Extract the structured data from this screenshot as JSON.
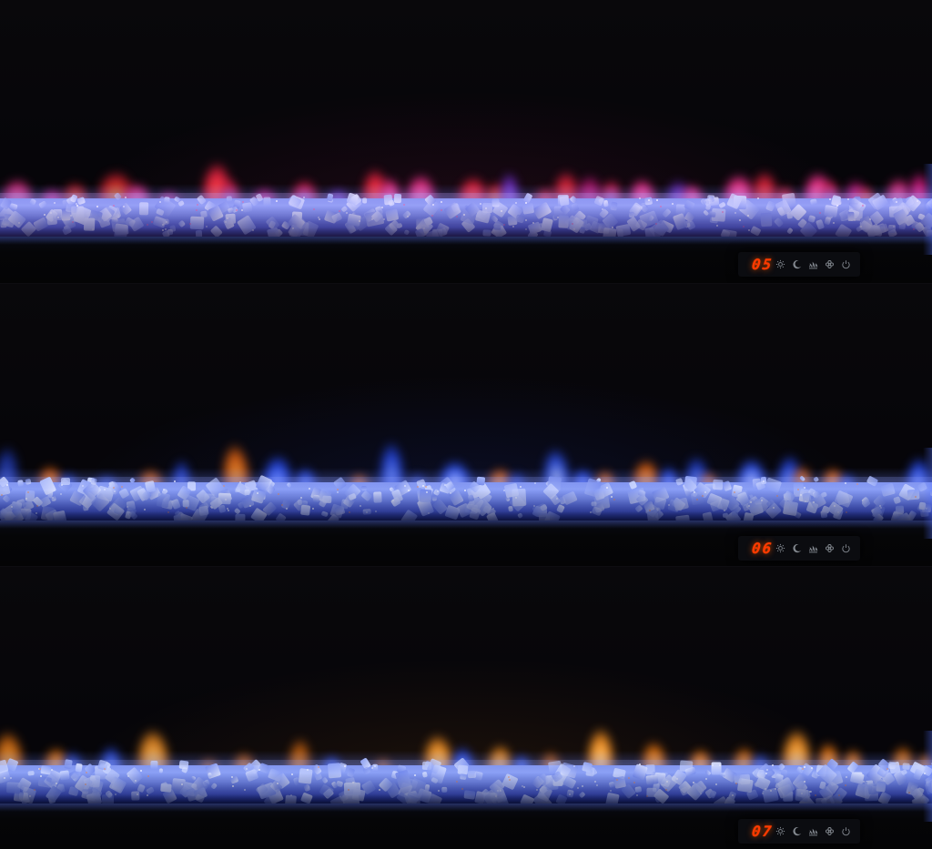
{
  "scene": {
    "description": "Linear electric fireplace with blue crystal ember bed shown in three stacked views, each with a different flame color setting and an LED touch control readout",
    "display": {
      "background": "#0b0c10",
      "digit_color": "#ff3a00",
      "icon_color": "#9aa0a8",
      "icons": [
        "brightness",
        "night-mode",
        "flame-bed",
        "fan",
        "power"
      ]
    },
    "crystals": {
      "base_top": "#8fa3f2",
      "base_deep": "#1b2570",
      "chunk_colors": [
        "#eef2ff",
        "#cdd8fd",
        "#aebefa",
        "#8ba0f4",
        "#7187e8",
        "#dfe7ff"
      ],
      "spark_color": "#ffffff"
    },
    "panels": [
      {
        "id": "top-view",
        "display_value": "05",
        "flame_theme": "magenta, pink and red flames with occasional orange and blue cores",
        "ambient_glow": "rgba(170,30,90,0.14)",
        "crystal_tint": "rgba(160,120,255,0.16)",
        "speck_color": "#ff5a8c",
        "palette": {
          "red": [
            "#d81f3c",
            "#ff5a50"
          ],
          "pink": [
            "#f0308c",
            "#ff8ac0"
          ],
          "magenta": [
            "#c01878",
            "#ff4fae"
          ],
          "purple": [
            "#6a2cc0",
            "#a36ce8"
          ],
          "redOrange": [
            "#e02030",
            "#ffb040"
          ],
          "redBlue": [
            "#d81f50",
            "#6f86ff"
          ]
        },
        "flames": [
          [
            20,
            26,
            58,
            "pink"
          ],
          [
            58,
            20,
            40,
            "magenta"
          ],
          [
            82,
            22,
            52,
            "redOrange"
          ],
          [
            128,
            30,
            72,
            "redOrange"
          ],
          [
            150,
            22,
            50,
            "pink"
          ],
          [
            185,
            18,
            36,
            "magenta"
          ],
          [
            238,
            24,
            88,
            "red"
          ],
          [
            252,
            18,
            58,
            "redBlue"
          ],
          [
            290,
            20,
            42,
            "magenta"
          ],
          [
            335,
            22,
            56,
            "redBlue"
          ],
          [
            372,
            18,
            40,
            "purple"
          ],
          [
            412,
            22,
            76,
            "red"
          ],
          [
            428,
            18,
            60,
            "pink"
          ],
          [
            462,
            24,
            66,
            "pink"
          ],
          [
            520,
            24,
            62,
            "red"
          ],
          [
            545,
            20,
            52,
            "redOrange"
          ],
          [
            560,
            16,
            70,
            "purple"
          ],
          [
            600,
            18,
            42,
            "red"
          ],
          [
            622,
            22,
            72,
            "red"
          ],
          [
            648,
            22,
            64,
            "magenta"
          ],
          [
            672,
            18,
            56,
            "redBlue"
          ],
          [
            705,
            22,
            58,
            "pink"
          ],
          [
            745,
            20,
            56,
            "purple"
          ],
          [
            760,
            18,
            48,
            "pink"
          ],
          [
            812,
            26,
            66,
            "pink"
          ],
          [
            840,
            22,
            72,
            "red"
          ],
          [
            862,
            18,
            46,
            "red"
          ],
          [
            898,
            24,
            70,
            "pink"
          ],
          [
            912,
            18,
            56,
            "redBlue"
          ],
          [
            940,
            20,
            56,
            "magenta"
          ],
          [
            952,
            16,
            44,
            "redOrange"
          ],
          [
            988,
            22,
            60,
            "pink"
          ],
          [
            1010,
            18,
            70,
            "magenta"
          ]
        ]
      },
      {
        "id": "middle-view",
        "display_value": "06",
        "flame_theme": "blue flames with scattered orange accents",
        "ambient_glow": "rgba(40,70,220,0.14)",
        "crystal_tint": "rgba(70,100,255,0.12)",
        "speck_color": "#ff8c3a",
        "palette": {
          "blue": [
            "#2242d8",
            "#7f9cff"
          ],
          "blueBright": [
            "#2c50f0",
            "#d8e4ff"
          ],
          "blueFaint": [
            "#1c34a8",
            "#4c66e0"
          ],
          "orange": [
            "#e86410",
            "#ffb050"
          ]
        },
        "flames": [
          [
            8,
            20,
            88,
            "blueFaint"
          ],
          [
            55,
            20,
            52,
            "orange"
          ],
          [
            75,
            16,
            40,
            "blue"
          ],
          [
            117,
            18,
            36,
            "blue"
          ],
          [
            165,
            20,
            46,
            "orange"
          ],
          [
            200,
            16,
            64,
            "blueFaint"
          ],
          [
            258,
            22,
            92,
            "orange"
          ],
          [
            305,
            24,
            72,
            "blue"
          ],
          [
            335,
            18,
            50,
            "blue"
          ],
          [
            395,
            16,
            38,
            "orange"
          ],
          [
            430,
            20,
            96,
            "blue"
          ],
          [
            458,
            14,
            40,
            "blueFaint"
          ],
          [
            500,
            26,
            62,
            "blueBright"
          ],
          [
            550,
            20,
            48,
            "orange"
          ],
          [
            568,
            16,
            42,
            "blueFaint"
          ],
          [
            610,
            22,
            84,
            "blueBright"
          ],
          [
            640,
            18,
            48,
            "blue"
          ],
          [
            665,
            16,
            44,
            "orange"
          ],
          [
            710,
            22,
            64,
            "orange"
          ],
          [
            735,
            16,
            52,
            "blue"
          ],
          [
            765,
            20,
            70,
            "blue"
          ],
          [
            778,
            14,
            40,
            "orange"
          ],
          [
            825,
            24,
            66,
            "blueBright"
          ],
          [
            868,
            20,
            72,
            "blue"
          ],
          [
            882,
            16,
            52,
            "orange"
          ],
          [
            915,
            18,
            48,
            "orange"
          ],
          [
            930,
            14,
            38,
            "blue"
          ],
          [
            1010,
            20,
            68,
            "blue"
          ]
        ]
      },
      {
        "id": "bottom-view",
        "display_value": "07",
        "flame_theme": "orange and amber flames with scattered blue accents",
        "ambient_glow": "rgba(235,130,30,0.10)",
        "crystal_tint": "rgba(70,100,255,0.10)",
        "speck_color": "#ff8c3a",
        "palette": {
          "orange": [
            "#e87410",
            "#ffc060"
          ],
          "amber": [
            "#f08c20",
            "#ffd890"
          ],
          "orangeDim": [
            "#b85a10",
            "#e8902c"
          ],
          "blue": [
            "#2848d8",
            "#7f9cff"
          ]
        },
        "flames": [
          [
            8,
            24,
            84,
            "orange"
          ],
          [
            62,
            20,
            55,
            "orange"
          ],
          [
            80,
            16,
            48,
            "blue"
          ],
          [
            122,
            18,
            58,
            "blue"
          ],
          [
            168,
            26,
            88,
            "amber"
          ],
          [
            230,
            16,
            36,
            "orangeDim"
          ],
          [
            268,
            18,
            46,
            "orangeDim"
          ],
          [
            330,
            18,
            72,
            "orangeDim"
          ],
          [
            365,
            16,
            40,
            "blue"
          ],
          [
            420,
            14,
            36,
            "orangeDim"
          ],
          [
            480,
            24,
            78,
            "amber"
          ],
          [
            508,
            18,
            56,
            "blue"
          ],
          [
            550,
            20,
            60,
            "amber"
          ],
          [
            572,
            14,
            42,
            "blue"
          ],
          [
            605,
            16,
            48,
            "orangeDim"
          ],
          [
            660,
            22,
            90,
            "amber"
          ],
          [
            718,
            20,
            66,
            "orange"
          ],
          [
            770,
            18,
            52,
            "orange"
          ],
          [
            818,
            18,
            56,
            "orange"
          ],
          [
            835,
            14,
            44,
            "blue"
          ],
          [
            875,
            24,
            88,
            "amber"
          ],
          [
            910,
            18,
            64,
            "orange"
          ],
          [
            938,
            16,
            52,
            "orange"
          ],
          [
            992,
            18,
            58,
            "orange"
          ],
          [
            1016,
            14,
            44,
            "orange"
          ]
        ]
      }
    ]
  }
}
